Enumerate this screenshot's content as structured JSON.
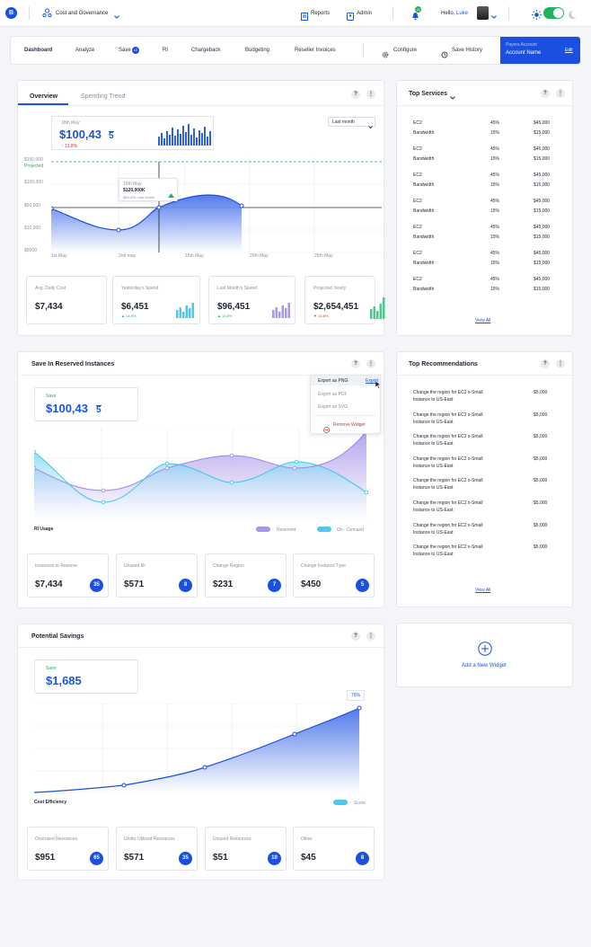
{
  "header": {
    "logo_letter": "B",
    "app_title": "Cost and Governance",
    "reports": "Reports",
    "admin": "Admin",
    "notification_count": "12",
    "hello": "Hello,",
    "user": "Luke"
  },
  "nav": {
    "items": [
      "Dashboard",
      "Analyze",
      "Save",
      "RI",
      "Chargeback",
      "Budgeting",
      "Reseller Invoices"
    ],
    "save_badge": "12",
    "configure": "Configure",
    "save_history": "Save History",
    "payer_label": "Payers Account",
    "payer_name": "Account Name",
    "payer_edit": "Edit"
  },
  "overview": {
    "tabs": [
      "Overview",
      "Spending Trend"
    ],
    "help": "?",
    "menu": "⋮",
    "summary_date": "18th May",
    "summary_value_main": "$100,43",
    "summary_value_frac": "5",
    "summary_change": "13.8%",
    "period_select": "Last month",
    "y_ticks": [
      "$150,000",
      "$100,000",
      "$50,000",
      "$10,000",
      "$5000"
    ],
    "projected_label": "Projected",
    "x_ticks": [
      "1st May",
      "2nd may",
      "15th May",
      "20th May",
      "25th May"
    ],
    "tooltip_date": "15th May",
    "tooltip_value": "$120,000K",
    "tooltip_sub": "$89,426 Last Month",
    "stats": [
      {
        "label": "Avg. Daily Cost",
        "value": "$7,434",
        "change": ""
      },
      {
        "label": "Yesterday's Spend",
        "value": "$6,451",
        "change": "13.8%"
      },
      {
        "label": "Last Month's Spend",
        "value": "$96,451",
        "change": "13.8%"
      },
      {
        "label": "Projected Yearly",
        "value": "$2,654,451",
        "change": "13.8%"
      }
    ]
  },
  "top_services": {
    "title": "Top Services",
    "help": "?",
    "menu": "⋮",
    "rows": [
      {
        "a": "EC2",
        "ap": "45%",
        "av": "$45,000",
        "b": "Bandwidth",
        "bp": "15%",
        "bv": "$15,000"
      },
      {
        "a": "EC2",
        "ap": "45%",
        "av": "$45,000",
        "b": "Bandwidth",
        "bp": "15%",
        "bv": "$15,000"
      },
      {
        "a": "EC2",
        "ap": "45%",
        "av": "$45,000",
        "b": "Bandwidth",
        "bp": "15%",
        "bv": "$15,000"
      },
      {
        "a": "EC2",
        "ap": "45%",
        "av": "$45,000",
        "b": "Bandwidth",
        "bp": "15%",
        "bv": "$15,000"
      },
      {
        "a": "EC2",
        "ap": "45%",
        "av": "$45,000",
        "b": "Bandwidth",
        "bp": "15%",
        "bv": "$15,000"
      },
      {
        "a": "EC2",
        "ap": "45%",
        "av": "$45,000",
        "b": "Bandwidth",
        "bp": "15%",
        "bv": "$15,000"
      },
      {
        "a": "EC2",
        "ap": "45%",
        "av": "$45,000",
        "b": "Bandwidth",
        "bp": "15%",
        "bv": "$15,000"
      }
    ],
    "view_all": "View All"
  },
  "reserved": {
    "title": "Save In Reserved Instances",
    "help": "?",
    "menu": "⋮",
    "save_label": "Save",
    "value_main": "$100,43",
    "value_frac": "5",
    "dropdown": {
      "export_png": "Export as PNG",
      "export_pdf": "Export as PDF",
      "export_svg": "Export as SVG",
      "export_link": "Export",
      "remove": "Remove Widget"
    },
    "chart_label": "RI Usage",
    "legend": [
      "Reserved",
      "On - Demand"
    ],
    "stats": [
      {
        "label": "Instances to Reserve",
        "value": "$7,434",
        "badge": "35"
      },
      {
        "label": "Unused RI",
        "value": "$571",
        "badge": "8"
      },
      {
        "label": "Change Region",
        "value": "$231",
        "badge": "7"
      },
      {
        "label": "Change Instance Type",
        "value": "$450",
        "badge": "5"
      }
    ]
  },
  "recommendations": {
    "title": "Top Recommendations",
    "help": "?",
    "menu": "⋮",
    "rows": [
      {
        "l1": "Change the region for EC2 x-Small",
        "l2": "Instance to US-East",
        "v": "$5,000"
      },
      {
        "l1": "Change the region for EC2 x-Small",
        "l2": "Instance to US-East",
        "v": "$5,000"
      },
      {
        "l1": "Change the region for EC2 x-Small",
        "l2": "Instance to US-East",
        "v": "$5,000"
      },
      {
        "l1": "Change the region for EC2 x-Small",
        "l2": "Instance to US-East",
        "v": "$5,000"
      },
      {
        "l1": "Change the region for EC2 x-Small",
        "l2": "Instance to US-East",
        "v": "$5,000"
      },
      {
        "l1": "Change the region for EC2 x-Small",
        "l2": "Instance to US-East",
        "v": "$5,000"
      },
      {
        "l1": "Change the region for EC2 x-Small",
        "l2": "Instance to US-East",
        "v": "$5,000"
      },
      {
        "l1": "Change the region for EC2 x-Small",
        "l2": "Instance to US-East",
        "v": "$5,000"
      }
    ],
    "view_all": "View All"
  },
  "potential": {
    "title": "Potential Savings",
    "help": "?",
    "menu": "⋮",
    "save_label": "Save",
    "value": "$1,685",
    "peak_label": "76%",
    "chart_label": "Cost Efficiency",
    "legend": "Score",
    "stats": [
      {
        "label": "Overused Resources",
        "value": "$951",
        "badge": "65"
      },
      {
        "label": "Under Utilized Resources",
        "value": "$571",
        "badge": "35"
      },
      {
        "label": "Unused Resources",
        "value": "$51",
        "badge": "10"
      },
      {
        "label": "Other",
        "value": "$45",
        "badge": "8"
      }
    ]
  },
  "add_widget": {
    "label": "Add a New Widget"
  }
}
